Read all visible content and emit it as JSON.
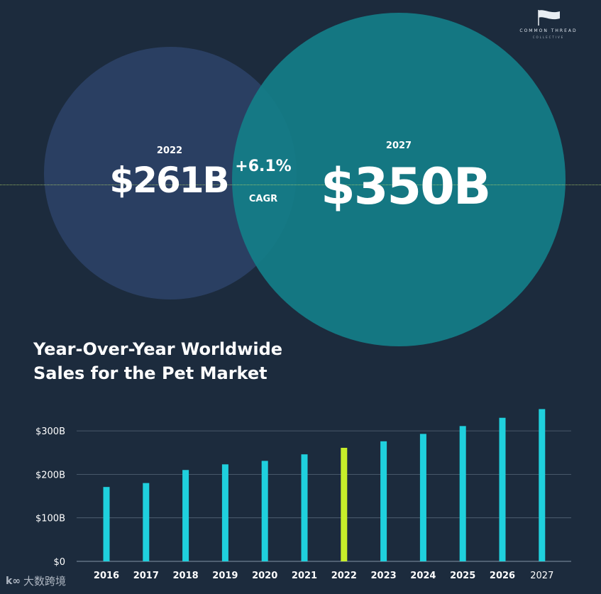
{
  "logo": {
    "brand": "COMMON THREAD",
    "sub": "COLLECTIVE",
    "icon": "flag-icon"
  },
  "comparison": {
    "left_year": "2022",
    "left_value": "$261B",
    "right_year": "2027",
    "right_value": "$350B",
    "growth": "+6.1%",
    "growth_label": "CAGR"
  },
  "heading": {
    "line1": "Year-Over-Year Worldwide",
    "line2": "Sales for the Pet Market"
  },
  "watermark": {
    "text": "大数跨境",
    "icon": "k-logo-icon"
  },
  "colors": {
    "bar": "#1fd0dd",
    "highlight_bar": "#c7ee2a",
    "grid": "#6f7f92",
    "circle_left": "#2a3f62",
    "circle_right": "#147e88"
  },
  "chart_data": {
    "type": "bar",
    "title": "Year-Over-Year Worldwide Sales for the Pet Market",
    "xlabel": "",
    "ylabel": "",
    "categories": [
      "2016",
      "2017",
      "2018",
      "2019",
      "2020",
      "2021",
      "2022",
      "2023",
      "2024",
      "2025",
      "2026",
      "2027"
    ],
    "values": [
      171,
      180,
      210,
      223,
      231,
      246,
      261,
      276,
      293,
      311,
      330,
      350
    ],
    "highlight_index": 6,
    "ylim": [
      0,
      350
    ],
    "yticks": [
      0,
      100,
      200,
      300
    ],
    "ytick_labels": [
      "$0",
      "$100B",
      "$200B",
      "$300B"
    ],
    "grid": true
  }
}
